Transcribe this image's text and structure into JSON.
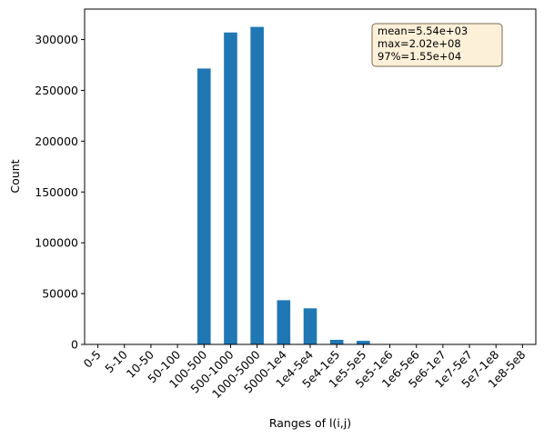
{
  "chart_data": {
    "type": "bar",
    "xlabel": "Ranges of l(i,j)",
    "ylabel": "Count",
    "ylim": [
      0,
      330000
    ],
    "yticks": [
      0,
      50000,
      100000,
      150000,
      200000,
      250000,
      300000
    ],
    "categories": [
      "0-5",
      "5-10",
      "10-50",
      "50-100",
      "100-500",
      "500-1000",
      "1000-5000",
      "5000-1e4",
      "1e4-5e4",
      "5e4-1e5",
      "1e5-5e5",
      "5e5-1e6",
      "1e6-5e6",
      "5e6-1e7",
      "1e7-5e7",
      "5e7-1e8",
      "1e8-5e8"
    ],
    "values": [
      0,
      0,
      0,
      0,
      271500,
      307000,
      312500,
      43500,
      35500,
      4500,
      3500,
      0,
      0,
      0,
      0,
      0,
      0
    ],
    "bar_color": "#1f77b4",
    "legend_position": "top-right",
    "annotation": {
      "lines": [
        "mean=5.54e+03",
        "max=2.02e+08",
        "97%=1.55e+04"
      ],
      "background": "#fdf0d8",
      "border": "#7f6a55"
    }
  }
}
